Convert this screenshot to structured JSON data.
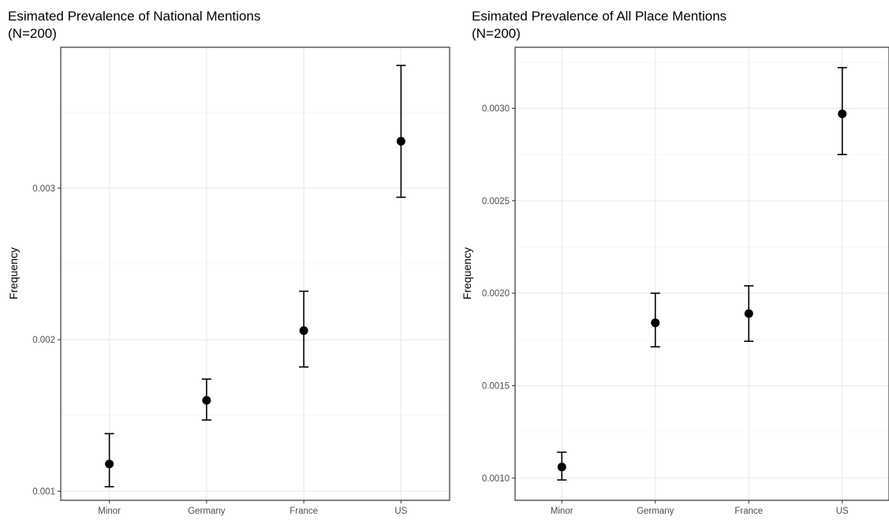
{
  "chart_data": [
    {
      "type": "scatter",
      "title": "Esimated Prevalence of National Mentions",
      "subtitle": "(N=200)",
      "xlabel": "",
      "ylabel": "Frequency",
      "categories": [
        "Minor",
        "Germany",
        "France",
        "US"
      ],
      "values": [
        0.00118,
        0.0016,
        0.00206,
        0.00331
      ],
      "error_low": [
        0.00103,
        0.00147,
        0.00182,
        0.00294
      ],
      "error_high": [
        0.00138,
        0.00174,
        0.00232,
        0.00381
      ],
      "ylim": [
        0.00094,
        0.00393
      ],
      "y_ticks": [
        0.001,
        0.002,
        0.003
      ],
      "y_tick_labels": [
        "0.001",
        "0.002",
        "0.003"
      ],
      "grid": true
    },
    {
      "type": "scatter",
      "title": "Esimated Prevalence of All Place Mentions",
      "subtitle": "(N=200)",
      "xlabel": "",
      "ylabel": "Frequency",
      "categories": [
        "Minor",
        "Germany",
        "France",
        "US"
      ],
      "values": [
        0.00106,
        0.00184,
        0.00189,
        0.00297
      ],
      "error_low": [
        0.00099,
        0.00171,
        0.00174,
        0.00275
      ],
      "error_high": [
        0.00114,
        0.002,
        0.00204,
        0.00322
      ],
      "ylim": [
        0.00088,
        0.00333
      ],
      "y_ticks": [
        0.001,
        0.0015,
        0.002,
        0.0025,
        0.003
      ],
      "y_tick_labels": [
        "0.0010",
        "0.0015",
        "0.0020",
        "0.0025",
        "0.0030"
      ],
      "grid": true
    }
  ],
  "colors": {
    "point": "#000000",
    "panel_border": "#333333",
    "grid_major": "#ebebeb",
    "grid_minor": "#f5f5f5",
    "tick_label": "#4d4d4d"
  }
}
